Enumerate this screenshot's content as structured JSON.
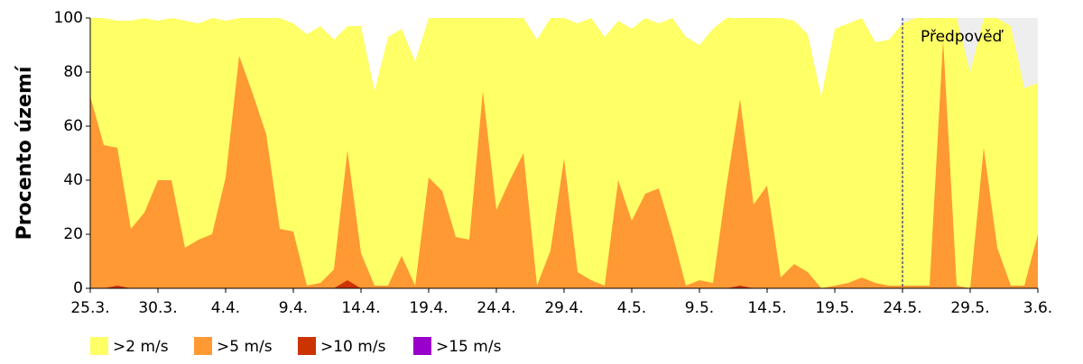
{
  "chart_data": {
    "type": "area",
    "ylabel": "Procento území",
    "categories": [
      "25.3.",
      null,
      null,
      null,
      null,
      "30.3.",
      null,
      null,
      null,
      null,
      "4.4.",
      null,
      null,
      null,
      null,
      "9.4.",
      null,
      null,
      null,
      null,
      "14.4.",
      null,
      null,
      null,
      null,
      "19.4.",
      null,
      null,
      null,
      null,
      "24.4.",
      null,
      null,
      null,
      null,
      "29.4.",
      null,
      null,
      null,
      null,
      "4.5.",
      null,
      null,
      null,
      null,
      "9.5.",
      null,
      null,
      null,
      null,
      "14.5.",
      null,
      null,
      null,
      null,
      "19.5.",
      null,
      null,
      null,
      null,
      "24.5.",
      null,
      null,
      null,
      null,
      "29.5.",
      null,
      null,
      null,
      null,
      "3.6."
    ],
    "series": [
      {
        "name": ">2 m/s",
        "color": "#ffff66",
        "values": [
          100,
          100,
          99,
          99,
          100,
          99,
          100,
          99,
          98,
          100,
          99,
          100,
          100,
          100,
          100,
          98,
          94,
          97,
          92,
          97,
          97,
          73,
          93,
          96,
          84,
          100,
          100,
          100,
          100,
          100,
          100,
          100,
          100,
          92,
          100,
          100,
          98,
          100,
          93,
          99,
          96,
          100,
          98,
          100,
          93,
          90,
          96,
          100,
          100,
          100,
          100,
          100,
          99,
          94,
          71,
          96,
          98,
          100,
          91,
          92,
          98,
          100,
          100,
          100,
          100,
          80,
          100,
          100,
          97,
          74,
          76
        ]
      },
      {
        "name": ">5 m/s",
        "color": "#ff9933",
        "values": [
          71,
          53,
          52,
          22,
          28,
          40,
          40,
          15,
          18,
          20,
          41,
          86,
          72,
          57,
          22,
          21,
          1,
          2,
          7,
          51,
          13,
          1,
          1,
          12,
          1,
          41,
          36,
          19,
          18,
          73,
          29,
          40,
          50,
          1,
          14,
          48,
          6,
          3,
          1,
          40,
          25,
          35,
          37,
          20,
          1,
          3,
          2,
          38,
          70,
          31,
          38,
          4,
          9,
          6,
          0,
          1,
          2,
          4,
          2,
          1,
          1,
          1,
          1,
          92,
          1,
          0,
          52,
          15,
          1,
          1,
          20
        ]
      },
      {
        "name": ">10 m/s",
        "color": "#cc3300",
        "values": [
          0,
          0,
          1,
          0,
          0,
          0,
          0,
          0,
          0,
          0,
          0,
          0,
          0,
          0,
          0,
          0,
          0,
          0,
          0,
          3,
          0,
          0,
          0,
          0,
          0,
          0,
          0,
          0,
          0,
          0,
          0,
          0,
          0,
          0,
          0,
          0,
          0,
          0,
          0,
          0,
          0,
          0,
          0,
          0,
          0,
          0,
          0,
          0,
          1,
          0,
          0,
          0,
          0,
          0,
          0,
          0,
          0,
          0,
          0,
          0,
          0,
          0,
          0,
          0,
          0,
          0,
          0,
          0,
          0,
          0,
          0
        ]
      },
      {
        "name": ">15 m/s",
        "color": "#9900cc",
        "values": [
          0,
          0,
          0,
          0,
          0,
          0,
          0,
          0,
          0,
          0,
          0,
          0,
          0,
          0,
          0,
          0,
          0,
          0,
          0,
          0,
          0,
          0,
          0,
          0,
          0,
          0,
          0,
          0,
          0,
          0,
          0,
          0,
          0,
          0,
          0,
          0,
          0,
          0,
          0,
          0,
          0,
          0,
          0,
          0,
          0,
          0,
          0,
          0,
          0,
          0,
          0,
          0,
          0,
          0,
          0,
          0,
          0,
          0,
          0,
          0,
          0,
          0,
          0,
          0,
          0,
          0,
          0,
          0,
          0,
          0,
          0
        ]
      }
    ],
    "ylim": [
      0,
      100
    ],
    "yticks": [
      0,
      20,
      40,
      60,
      80,
      100
    ],
    "forecast": {
      "label": "Předpověď",
      "from": "24.5.",
      "color": "#eeeeee"
    },
    "legend": "bottom-left"
  }
}
